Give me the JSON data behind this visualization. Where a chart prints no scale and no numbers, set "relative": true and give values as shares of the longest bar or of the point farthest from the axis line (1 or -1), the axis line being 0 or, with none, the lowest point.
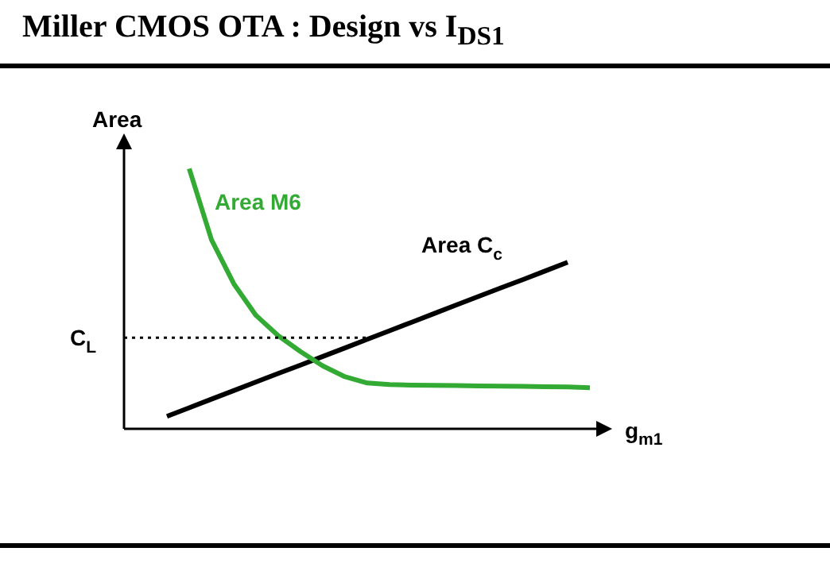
{
  "chart_data": {
    "type": "line",
    "title": "Miller CMOS OTA : Design vs I$_{DS1}$",
    "xlabel": "g$_{m1}$",
    "ylabel": "Area",
    "relative": true,
    "grid": false,
    "legend": false,
    "marker": "none",
    "line_style": "solid",
    "categories": [
      null,
      null,
      null,
      null,
      null,
      null,
      null,
      null,
      null,
      null,
      null,
      null,
      null,
      null,
      null,
      null,
      null,
      null,
      null,
      null
    ],
    "series": [
      {
        "name": "Area M6",
        "color": "#33aa33",
        "values": [
          null,
          1.0,
          0.727,
          0.558,
          0.436,
          0.358,
          0.297,
          0.242,
          0.2,
          0.176,
          0.17,
          0.168,
          0.167,
          0.166,
          0.165,
          0.164,
          0.163,
          0.162,
          0.161,
          0.158
        ]
      },
      {
        "name": "Area C$_{c}$",
        "color": "#000000",
        "values": [
          0.048,
          0.081,
          0.114,
          0.147,
          0.18,
          0.213,
          0.245,
          0.278,
          0.311,
          0.344,
          0.377,
          0.41,
          0.443,
          0.476,
          0.509,
          0.542,
          0.574,
          0.607,
          0.64,
          null
        ]
      }
    ],
    "ref_lines": [
      {
        "axis": "y",
        "value": 0.35,
        "label": "C$_{L}$",
        "color": "#000000",
        "line_style": "dotted"
      }
    ]
  }
}
